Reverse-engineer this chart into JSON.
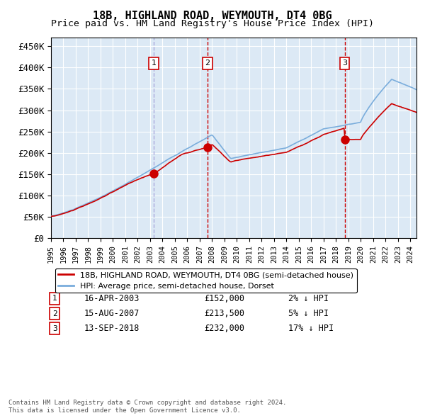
{
  "title": "18B, HIGHLAND ROAD, WEYMOUTH, DT4 0BG",
  "subtitle": "Price paid vs. HM Land Registry's House Price Index (HPI)",
  "hpi_label": "HPI: Average price, semi-detached house, Dorset",
  "property_label": "18B, HIGHLAND ROAD, WEYMOUTH, DT4 0BG (semi-detached house)",
  "footer_line1": "Contains HM Land Registry data © Crown copyright and database right 2024.",
  "footer_line2": "This data is licensed under the Open Government Licence v3.0.",
  "sales": [
    {
      "num": 1,
      "date": "16-APR-2003",
      "date_val": 2003.29,
      "price": 152000,
      "pct": "2%",
      "dir": "↓"
    },
    {
      "num": 2,
      "date": "15-AUG-2007",
      "date_val": 2007.62,
      "price": 213500,
      "pct": "5%",
      "dir": "↓"
    },
    {
      "num": 3,
      "date": "13-SEP-2018",
      "date_val": 2018.7,
      "price": 232000,
      "pct": "17%",
      "dir": "↓"
    }
  ],
  "ylim": [
    0,
    470000
  ],
  "xlim_start": 1995.0,
  "xlim_end": 2024.5,
  "background_color": "#dce9f5",
  "grid_color": "#ffffff",
  "hpi_color": "#7aaddc",
  "property_color": "#cc0000",
  "vline1_color": "#aaaadd",
  "vline2_color": "#cc0000",
  "vline3_color": "#cc0000",
  "yticks": [
    0,
    50000,
    100000,
    150000,
    200000,
    250000,
    300000,
    350000,
    400000,
    450000
  ],
  "ytick_labels": [
    "£0",
    "£50K",
    "£100K",
    "£150K",
    "£200K",
    "£250K",
    "£300K",
    "£350K",
    "£400K",
    "£450K"
  ],
  "xtick_years": [
    1995,
    1996,
    1997,
    1998,
    1999,
    2000,
    2001,
    2002,
    2003,
    2004,
    2005,
    2006,
    2007,
    2008,
    2009,
    2010,
    2011,
    2012,
    2013,
    2014,
    2015,
    2016,
    2017,
    2018,
    2019,
    2020,
    2021,
    2022,
    2023,
    2024
  ]
}
